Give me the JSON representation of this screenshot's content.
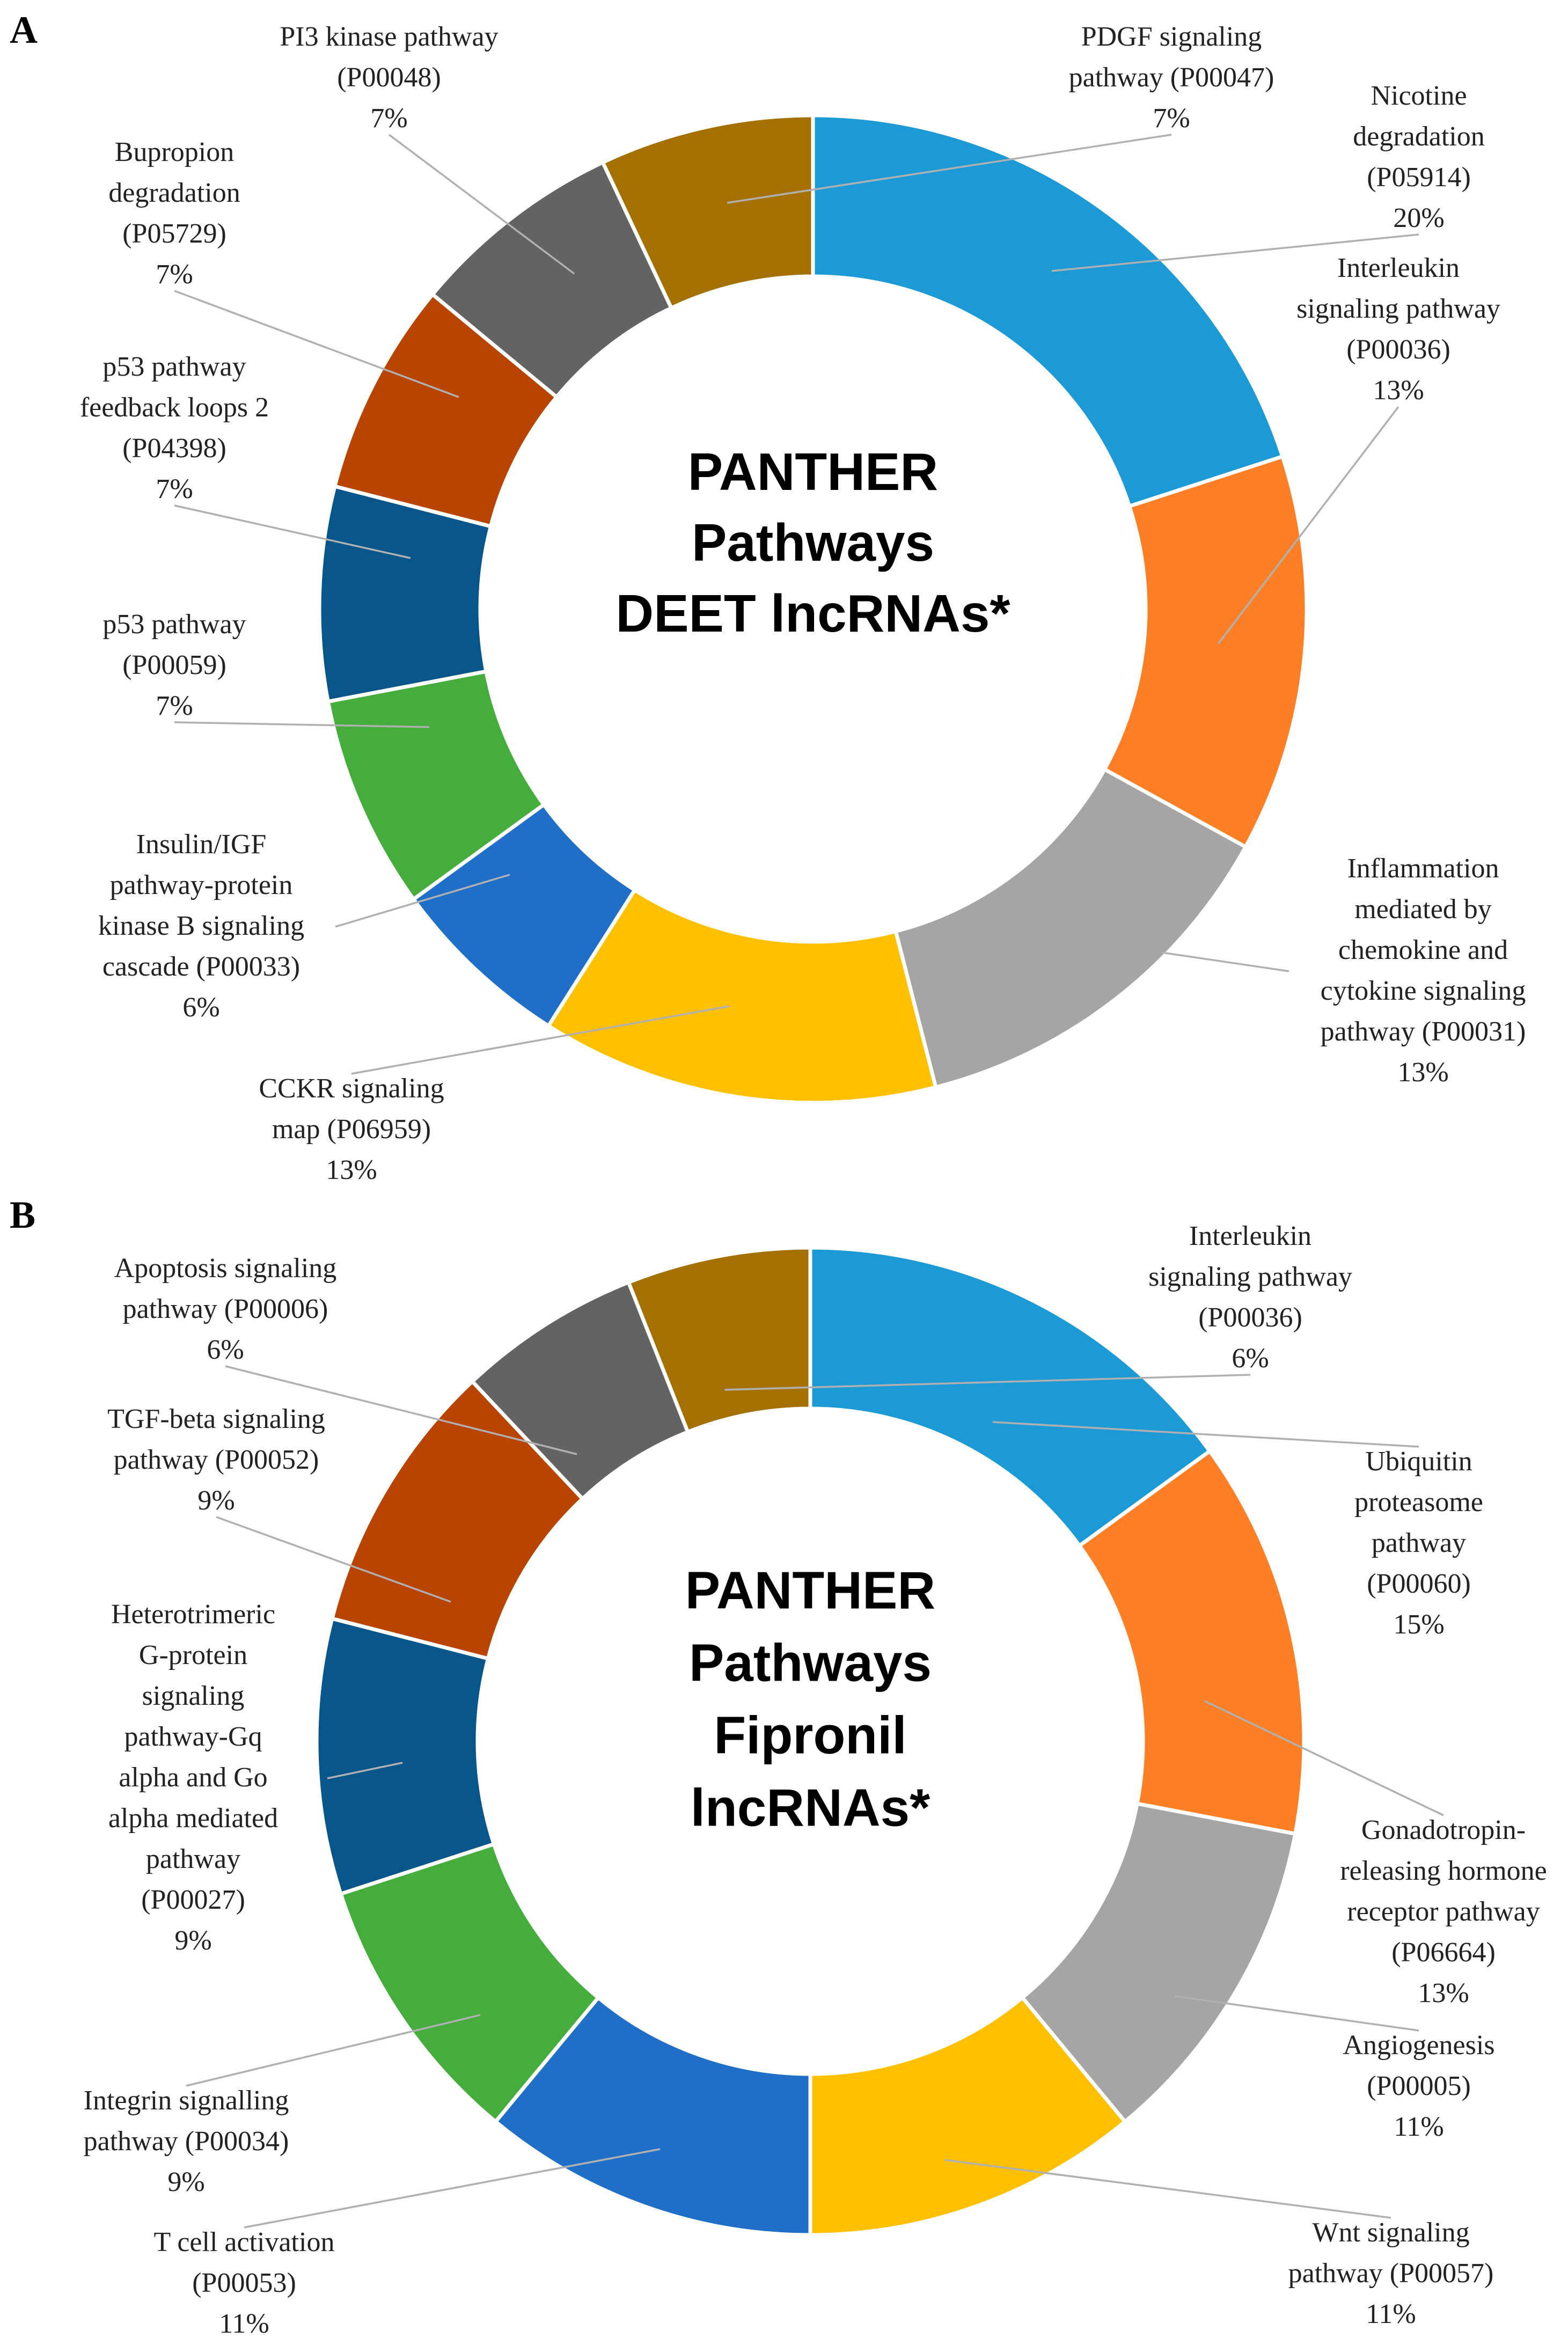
{
  "chart_data": [
    {
      "type": "pie",
      "panel": "A",
      "center_title": [
        "PANTHER",
        "Pathways",
        "DEET lncRNAs*"
      ],
      "slices": [
        {
          "label": [
            "Nicotine",
            "degradation",
            "(P05914)"
          ],
          "percent_label": "20%",
          "value": 20,
          "color": "#1B9AD6"
        },
        {
          "label": [
            "Interleukin",
            "signaling pathway",
            "(P00036)"
          ],
          "percent_label": "13%",
          "value": 13,
          "color": "#FF7F27"
        },
        {
          "label": [
            "Inflammation",
            "mediated by",
            "chemokine and",
            "cytokine signaling",
            "pathway (P00031)"
          ],
          "percent_label": "13%",
          "value": 13,
          "color": "#A5A5A5"
        },
        {
          "label": [
            "CCKR signaling",
            "map (P06959)"
          ],
          "percent_label": "13%",
          "value": 13,
          "color": "#FFC000"
        },
        {
          "label": [
            "Insulin/IGF",
            "pathway-protein",
            "kinase B signaling",
            "cascade (P00033)"
          ],
          "percent_label": "6%",
          "value": 6,
          "color": "#1F6FC8"
        },
        {
          "label": [
            "p53 pathway",
            "(P00059)"
          ],
          "percent_label": "7%",
          "value": 7,
          "color": "#44AD3C"
        },
        {
          "label": [
            "p53 pathway",
            "feedback loops 2",
            "(P04398)"
          ],
          "percent_label": "7%",
          "value": 7,
          "color": "#06568C"
        },
        {
          "label": [
            "Bupropion",
            "degradation",
            "(P05729)"
          ],
          "percent_label": "7%",
          "value": 7,
          "color": "#B84400"
        },
        {
          "label": [
            "PI3 kinase pathway",
            "(P00048)"
          ],
          "percent_label": "7%",
          "value": 7,
          "color": "#636363"
        },
        {
          "label": [
            "PDGF signaling",
            "pathway (P00047)"
          ],
          "percent_label": "7%",
          "value": 7,
          "color": "#A47100"
        }
      ]
    },
    {
      "type": "pie",
      "panel": "B",
      "center_title": [
        "PANTHER",
        "Pathways",
        "Fipronil",
        "lncRNAs*"
      ],
      "slices": [
        {
          "label": [
            "Ubiquitin",
            "proteasome",
            "pathway",
            "(P00060)"
          ],
          "percent_label": "15%",
          "value": 15,
          "color": "#1B9AD6"
        },
        {
          "label": [
            "Gonadotropin-",
            "releasing hormone",
            "receptor pathway",
            "(P06664)"
          ],
          "percent_label": "13%",
          "value": 13,
          "color": "#FF7F27"
        },
        {
          "label": [
            "Angiogenesis",
            "(P00005)"
          ],
          "percent_label": "11%",
          "value": 11,
          "color": "#A5A5A5"
        },
        {
          "label": [
            "Wnt signaling",
            "pathway (P00057)"
          ],
          "percent_label": "11%",
          "value": 11,
          "color": "#FFC000"
        },
        {
          "label": [
            "T cell activation",
            "(P00053)"
          ],
          "percent_label": "11%",
          "value": 11,
          "color": "#1F6FC8"
        },
        {
          "label": [
            "Integrin signalling",
            "pathway (P00034)"
          ],
          "percent_label": "9%",
          "value": 9,
          "color": "#44AD3C"
        },
        {
          "label": [
            "Heterotrimeric",
            "G-protein",
            "signaling",
            "pathway-Gq",
            "alpha and Go",
            "alpha mediated",
            "pathway",
            "(P00027)"
          ],
          "percent_label": "9%",
          "value": 9,
          "color": "#06568C"
        },
        {
          "label": [
            "TGF-beta signaling",
            "pathway (P00052)"
          ],
          "percent_label": "9%",
          "value": 9,
          "color": "#B84400"
        },
        {
          "label": [
            "Apoptosis signaling",
            "pathway (P00006)"
          ],
          "percent_label": "6%",
          "value": 6,
          "color": "#636363"
        },
        {
          "label": [
            "Interleukin",
            "signaling pathway",
            "(P00036)"
          ],
          "percent_label": "6%",
          "value": 6,
          "color": "#A47100"
        }
      ]
    }
  ]
}
